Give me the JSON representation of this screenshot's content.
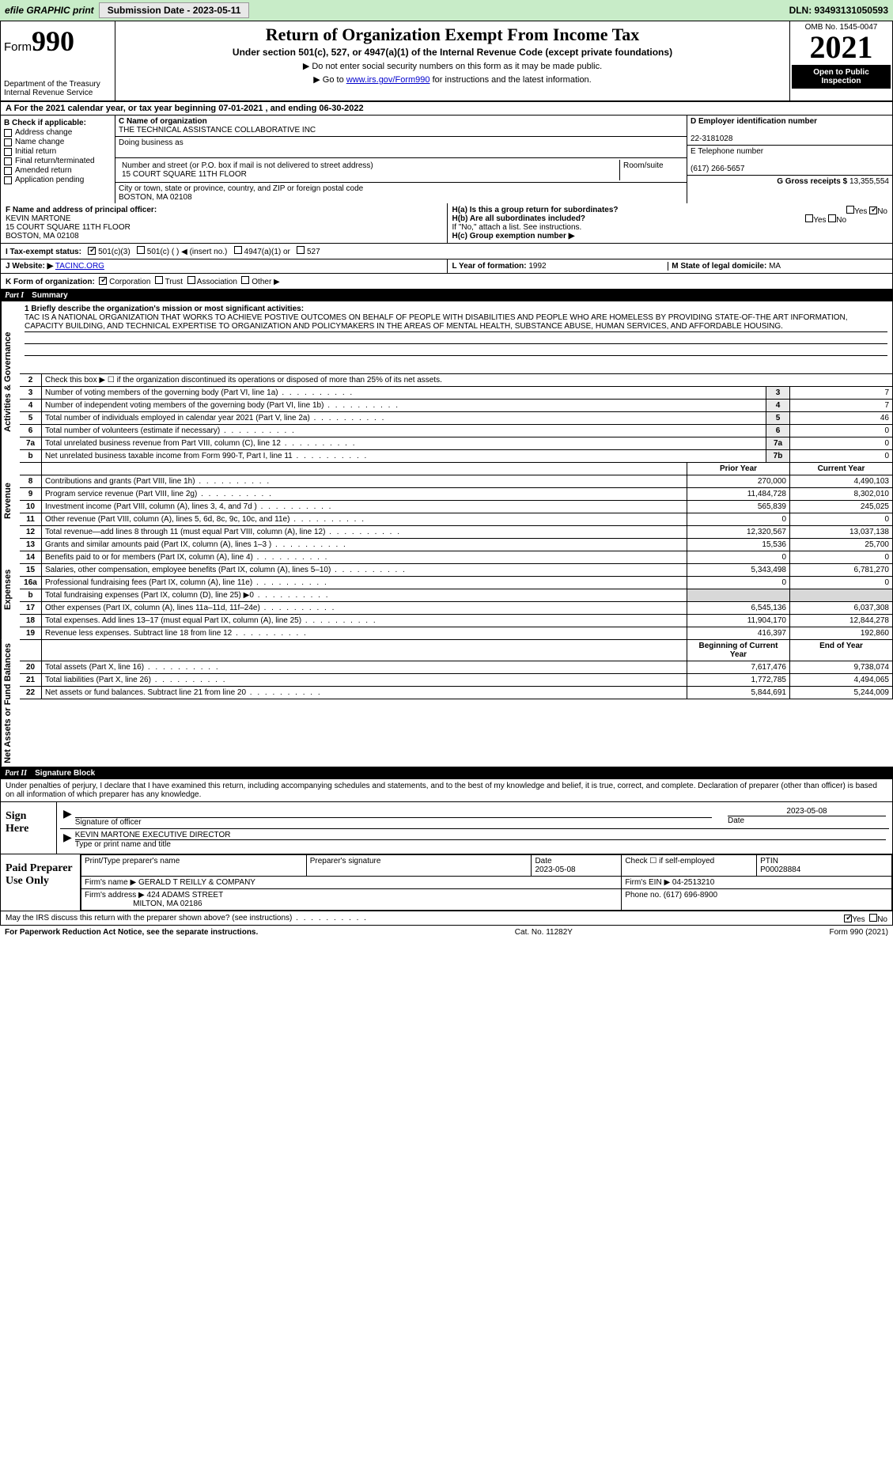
{
  "topbar": {
    "efile": "efile GRAPHIC print",
    "subdate_label": "Submission Date - 2023-05-11",
    "dln": "DLN: 93493131050593"
  },
  "header": {
    "form_label": "Form",
    "form_no": "990",
    "dept": "Department of the Treasury",
    "irs": "Internal Revenue Service",
    "title": "Return of Organization Exempt From Income Tax",
    "sub": "Under section 501(c), 527, or 4947(a)(1) of the Internal Revenue Code (except private foundations)",
    "note1": "▶ Do not enter social security numbers on this form as it may be made public.",
    "note2_pre": "▶ Go to ",
    "note2_link": "www.irs.gov/Form990",
    "note2_post": " for instructions and the latest information.",
    "omb": "OMB No. 1545-0047",
    "year": "2021",
    "inspect": "Open to Public Inspection"
  },
  "rowA": "A For the 2021 calendar year, or tax year beginning 07-01-2021     , and ending 06-30-2022",
  "boxB": {
    "label": "B Check if applicable:",
    "items": [
      "Address change",
      "Name change",
      "Initial return",
      "Final return/terminated",
      "Amended return",
      "Application pending"
    ]
  },
  "boxC": {
    "name_lbl": "C Name of organization",
    "name": "THE TECHNICAL ASSISTANCE COLLABORATIVE INC",
    "dba_lbl": "Doing business as",
    "dba": "",
    "street_lbl": "Number and street (or P.O. box if mail is not delivered to street address)",
    "room_lbl": "Room/suite",
    "street": "15 COURT SQUARE 11TH FLOOR",
    "city_lbl": "City or town, state or province, country, and ZIP or foreign postal code",
    "city": "BOSTON, MA  02108"
  },
  "boxD": {
    "lbl": "D Employer identification number",
    "val": "22-3181028"
  },
  "boxE": {
    "lbl": "E Telephone number",
    "val": "(617) 266-5657"
  },
  "boxG": {
    "lbl": "G Gross receipts $",
    "val": "13,355,554"
  },
  "boxF": {
    "lbl": "F  Name and address of principal officer:",
    "name": "KEVIN MARTONE",
    "addr1": "15 COURT SQUARE 11TH FLOOR",
    "addr2": "BOSTON, MA  02108"
  },
  "boxH": {
    "a_lbl": "H(a)  Is this a group return for subordinates?",
    "a_yes": "Yes",
    "a_no": "No",
    "b_lbl": "H(b)  Are all subordinates included?",
    "b_yes": "Yes",
    "b_no": "No",
    "note": "If \"No,\" attach a list. See instructions.",
    "c_lbl": "H(c)  Group exemption number ▶"
  },
  "boxI": {
    "lbl": "I   Tax-exempt status:",
    "o1": "501(c)(3)",
    "o2": "501(c) (  ) ◀ (insert no.)",
    "o3": "4947(a)(1) or",
    "o4": "527"
  },
  "boxJ": {
    "lbl": "J   Website: ▶",
    "val": "TACINC.ORG"
  },
  "boxK": {
    "lbl": "K Form of organization:",
    "o1": "Corporation",
    "o2": "Trust",
    "o3": "Association",
    "o4": "Other ▶"
  },
  "boxL": {
    "lbl": "L Year of formation:",
    "val": "1992"
  },
  "boxM": {
    "lbl": "M State of legal domicile:",
    "val": "MA"
  },
  "part1": {
    "num": "Part I",
    "title": "Summary"
  },
  "mission": {
    "lbl": "1  Briefly describe the organization's mission or most significant activities:",
    "text": "TAC IS A NATIONAL ORGANIZATION THAT WORKS TO ACHIEVE POSTIVE OUTCOMES ON BEHALF OF PEOPLE WITH DISABILITIES AND PEOPLE WHO ARE HOMELESS BY PROVIDING STATE-OF-THE ART INFORMATION, CAPACITY BUILDING, AND TECHNICAL EXPERTISE TO ORGANIZATION AND POLICYMAKERS IN THE AREAS OF MENTAL HEALTH, SUBSTANCE ABUSE, HUMAN SERVICES, AND AFFORDABLE HOUSING."
  },
  "activities": {
    "2": "Check this box ▶ ☐  if the organization discontinued its operations or disposed of more than 25% of its net assets.",
    "rows": [
      {
        "n": "3",
        "t": "Number of voting members of the governing body (Part VI, line 1a)",
        "box": "3",
        "v": "7"
      },
      {
        "n": "4",
        "t": "Number of independent voting members of the governing body (Part VI, line 1b)",
        "box": "4",
        "v": "7"
      },
      {
        "n": "5",
        "t": "Total number of individuals employed in calendar year 2021 (Part V, line 2a)",
        "box": "5",
        "v": "46"
      },
      {
        "n": "6",
        "t": "Total number of volunteers (estimate if necessary)",
        "box": "6",
        "v": "0"
      },
      {
        "n": "7a",
        "t": "Total unrelated business revenue from Part VIII, column (C), line 12",
        "box": "7a",
        "v": "0"
      },
      {
        "n": "b",
        "t": "Net unrelated business taxable income from Form 990-T, Part I, line 11",
        "box": "7b",
        "v": "0"
      }
    ]
  },
  "side_labels": {
    "ag": "Activities & Governance",
    "rev": "Revenue",
    "exp": "Expenses",
    "na": "Net Assets or Fund Balances"
  },
  "cols": {
    "prior": "Prior Year",
    "current": "Current Year",
    "boy": "Beginning of Current Year",
    "eoy": "End of Year"
  },
  "revenue": [
    {
      "n": "8",
      "t": "Contributions and grants (Part VIII, line 1h)",
      "p": "270,000",
      "c": "4,490,103"
    },
    {
      "n": "9",
      "t": "Program service revenue (Part VIII, line 2g)",
      "p": "11,484,728",
      "c": "8,302,010"
    },
    {
      "n": "10",
      "t": "Investment income (Part VIII, column (A), lines 3, 4, and 7d )",
      "p": "565,839",
      "c": "245,025"
    },
    {
      "n": "11",
      "t": "Other revenue (Part VIII, column (A), lines 5, 6d, 8c, 9c, 10c, and 11e)",
      "p": "0",
      "c": "0"
    },
    {
      "n": "12",
      "t": "Total revenue—add lines 8 through 11 (must equal Part VIII, column (A), line 12)",
      "p": "12,320,567",
      "c": "13,037,138"
    }
  ],
  "expenses": [
    {
      "n": "13",
      "t": "Grants and similar amounts paid (Part IX, column (A), lines 1–3 )",
      "p": "15,536",
      "c": "25,700"
    },
    {
      "n": "14",
      "t": "Benefits paid to or for members (Part IX, column (A), line 4)",
      "p": "0",
      "c": "0"
    },
    {
      "n": "15",
      "t": "Salaries, other compensation, employee benefits (Part IX, column (A), lines 5–10)",
      "p": "5,343,498",
      "c": "6,781,270"
    },
    {
      "n": "16a",
      "t": "Professional fundraising fees (Part IX, column (A), line 11e)",
      "p": "0",
      "c": "0"
    },
    {
      "n": "b",
      "t": "Total fundraising expenses (Part IX, column (D), line 25) ▶0",
      "p": "",
      "c": "",
      "shade": true
    },
    {
      "n": "17",
      "t": "Other expenses (Part IX, column (A), lines 11a–11d, 11f–24e)",
      "p": "6,545,136",
      "c": "6,037,308"
    },
    {
      "n": "18",
      "t": "Total expenses. Add lines 13–17 (must equal Part IX, column (A), line 25)",
      "p": "11,904,170",
      "c": "12,844,278"
    },
    {
      "n": "19",
      "t": "Revenue less expenses. Subtract line 18 from line 12",
      "p": "416,397",
      "c": "192,860"
    }
  ],
  "netassets": [
    {
      "n": "20",
      "t": "Total assets (Part X, line 16)",
      "p": "7,617,476",
      "c": "9,738,074"
    },
    {
      "n": "21",
      "t": "Total liabilities (Part X, line 26)",
      "p": "1,772,785",
      "c": "4,494,065"
    },
    {
      "n": "22",
      "t": "Net assets or fund balances. Subtract line 21 from line 20",
      "p": "5,844,691",
      "c": "5,244,009"
    }
  ],
  "part2": {
    "num": "Part II",
    "title": "Signature Block"
  },
  "penalties": "Under penalties of perjury, I declare that I have examined this return, including accompanying schedules and statements, and to the best of my knowledge and belief, it is true, correct, and complete. Declaration of preparer (other than officer) is based on all information of which preparer has any knowledge.",
  "sign": {
    "here": "Sign Here",
    "sig_lbl": "Signature of officer",
    "date_lbl": "Date",
    "date": "2023-05-08",
    "name": "KEVIN MARTONE  EXECUTIVE DIRECTOR",
    "name_lbl": "Type or print name and title"
  },
  "prep": {
    "here": "Paid Preparer Use Only",
    "h1": "Print/Type preparer's name",
    "h2": "Preparer's signature",
    "h3": "Date",
    "h3v": "2023-05-08",
    "h4": "Check ☐ if self-employed",
    "h5": "PTIN",
    "h5v": "P00028884",
    "firm_lbl": "Firm's name    ▶",
    "firm": "GERALD T REILLY & COMPANY",
    "ein_lbl": "Firm's EIN ▶",
    "ein": "04-2513210",
    "addr_lbl": "Firm's address ▶",
    "addr1": "424 ADAMS STREET",
    "addr2": "MILTON, MA  02186",
    "phone_lbl": "Phone no.",
    "phone": "(617) 696-8900"
  },
  "discuss": {
    "t": "May the IRS discuss this return with the preparer shown above? (see instructions)",
    "yes": "Yes",
    "no": "No"
  },
  "footer": {
    "l": "For Paperwork Reduction Act Notice, see the separate instructions.",
    "c": "Cat. No. 11282Y",
    "r": "Form 990 (2021)"
  }
}
